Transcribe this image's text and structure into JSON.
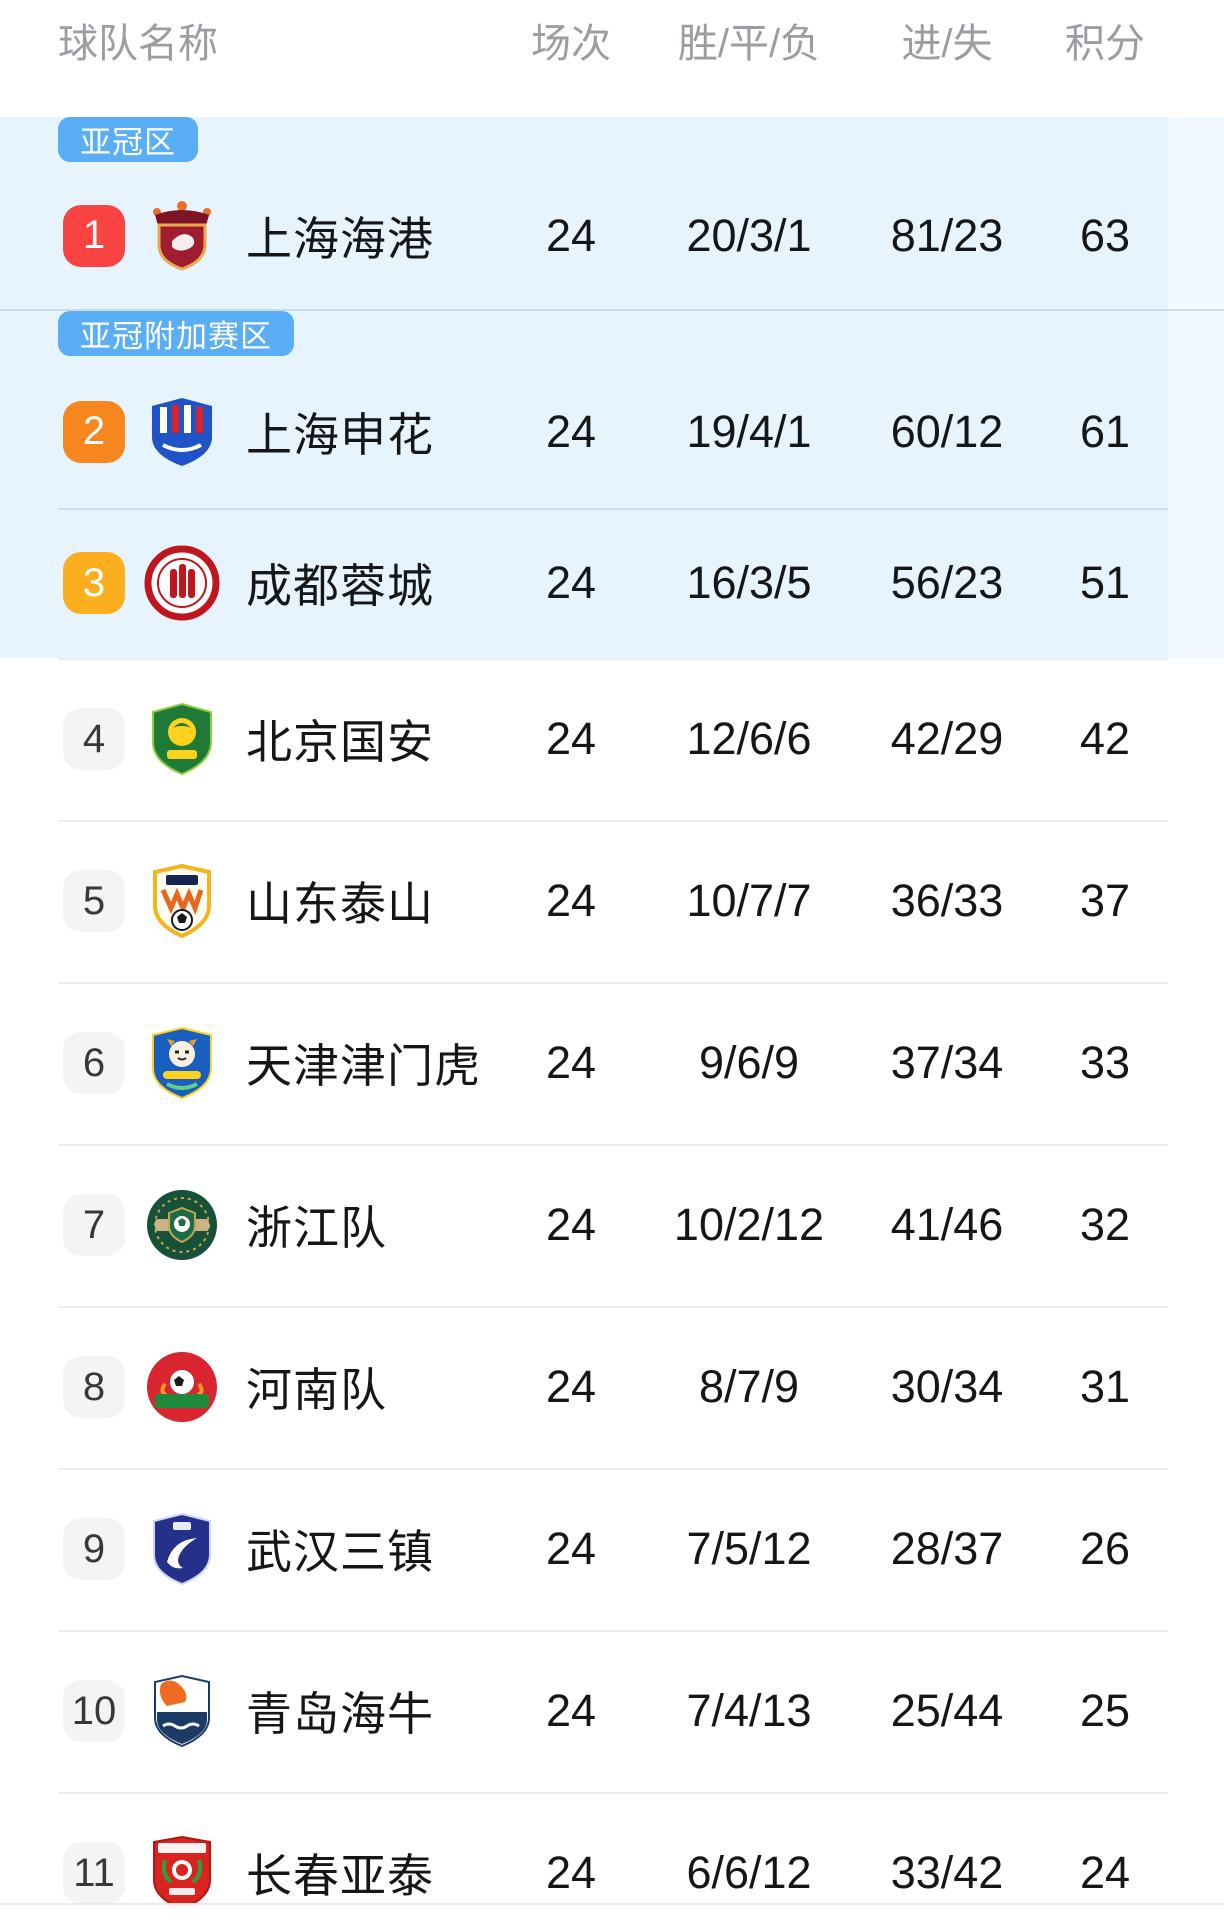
{
  "header": {
    "team": "球队名称",
    "played": "场次",
    "win_draw_loss": "胜/平/负",
    "goals": "进/失",
    "points": "积分"
  },
  "zones": {
    "acl": {
      "label": "亚冠区",
      "badge_color": "#5aaef5"
    },
    "acl_playoff": {
      "label": "亚冠附加赛区",
      "badge_color": "#5aaef5"
    }
  },
  "colors": {
    "zone_background": "#e7f3fd",
    "rank_1": "#fa4343",
    "rank_2": "#f8861f",
    "rank_3": "#fbaf1e",
    "rank_default_bg": "#f4f4f5",
    "header_text": "#9a9da1"
  },
  "teams": [
    {
      "rank": "1",
      "name": "上海海港",
      "played": "24",
      "win_draw_loss": "20/3/1",
      "goals": "81/23",
      "points": "63",
      "zone": "acl",
      "logo": "shanghai-port",
      "rank_bg": "#fa4343",
      "rank_fg": "#ffffff"
    },
    {
      "rank": "2",
      "name": "上海申花",
      "played": "24",
      "win_draw_loss": "19/4/1",
      "goals": "60/12",
      "points": "61",
      "zone": "acl_playoff",
      "logo": "shanghai-shenhua",
      "rank_bg": "#f8861f",
      "rank_fg": "#ffffff"
    },
    {
      "rank": "3",
      "name": "成都蓉城",
      "played": "24",
      "win_draw_loss": "16/3/5",
      "goals": "56/23",
      "points": "51",
      "zone": "acl_playoff",
      "logo": "chengdu-rongcheng",
      "rank_bg": "#fbaf1e",
      "rank_fg": "#ffffff"
    },
    {
      "rank": "4",
      "name": "北京国安",
      "played": "24",
      "win_draw_loss": "12/6/6",
      "goals": "42/29",
      "points": "42",
      "zone": null,
      "logo": "beijing-guoan"
    },
    {
      "rank": "5",
      "name": "山东泰山",
      "played": "24",
      "win_draw_loss": "10/7/7",
      "goals": "36/33",
      "points": "37",
      "zone": null,
      "logo": "shandong-taishan"
    },
    {
      "rank": "6",
      "name": "天津津门虎",
      "played": "24",
      "win_draw_loss": "9/6/9",
      "goals": "37/34",
      "points": "33",
      "zone": null,
      "logo": "tianjin-jinmen-tiger"
    },
    {
      "rank": "7",
      "name": "浙江队",
      "played": "24",
      "win_draw_loss": "10/2/12",
      "goals": "41/46",
      "points": "32",
      "zone": null,
      "logo": "zhejiang"
    },
    {
      "rank": "8",
      "name": "河南队",
      "played": "24",
      "win_draw_loss": "8/7/9",
      "goals": "30/34",
      "points": "31",
      "zone": null,
      "logo": "henan"
    },
    {
      "rank": "9",
      "name": "武汉三镇",
      "played": "24",
      "win_draw_loss": "7/5/12",
      "goals": "28/37",
      "points": "26",
      "zone": null,
      "logo": "wuhan-three-towns"
    },
    {
      "rank": "10",
      "name": "青岛海牛",
      "played": "24",
      "win_draw_loss": "7/4/13",
      "goals": "25/44",
      "points": "25",
      "zone": null,
      "logo": "qingdao-hainiu"
    },
    {
      "rank": "11",
      "name": "长春亚泰",
      "played": "24",
      "win_draw_loss": "6/6/12",
      "goals": "33/42",
      "points": "24",
      "zone": null,
      "logo": "changchun-yatai"
    }
  ]
}
